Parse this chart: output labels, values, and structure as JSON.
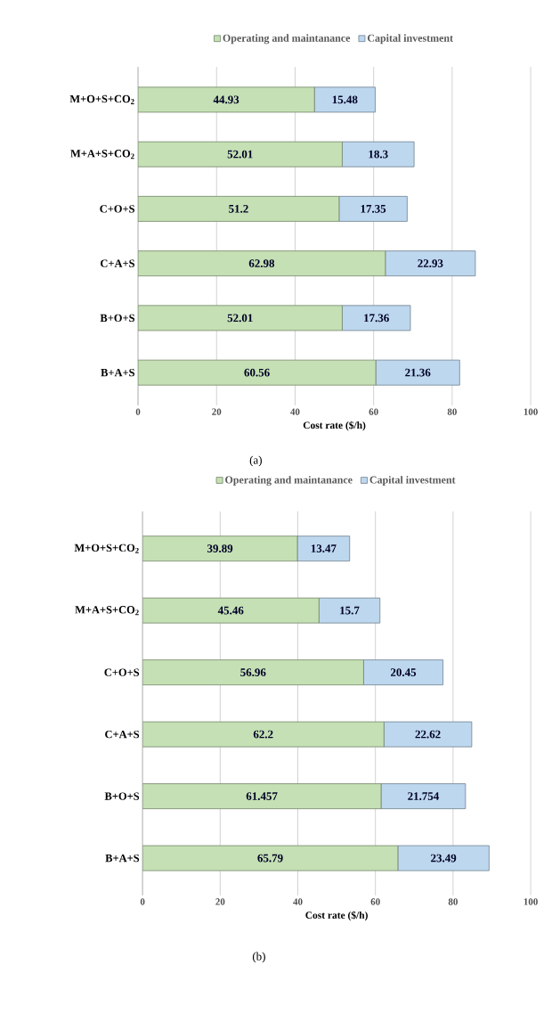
{
  "chart_data": [
    {
      "type": "bar",
      "orientation": "horizontal",
      "stacked": true,
      "categories": [
        "M+O+S+CO$_{2}$",
        "M+A+S+CO$_{2}$",
        "C+O+S",
        "C+A+S",
        "B+O+S",
        "B+A+S"
      ],
      "series": [
        {
          "name": "Operating and maintanance",
          "color": "#c5e0b4",
          "values": [
            44.93,
            52.01,
            51.2,
            62.98,
            52.01,
            60.56
          ]
        },
        {
          "name": "Capital investment",
          "color": "#bdd7ee",
          "values": [
            15.48,
            18.3,
            17.35,
            22.93,
            17.36,
            21.36
          ]
        }
      ],
      "xlim": [
        0,
        100
      ],
      "xticks": [
        0,
        20,
        40,
        60,
        80,
        100
      ],
      "xlabel": "Cost rate ($/h)",
      "grid": "x",
      "legend": "top",
      "data_labels": true,
      "annotations": [
        "(a)"
      ]
    },
    {
      "type": "bar",
      "orientation": "horizontal",
      "stacked": true,
      "categories": [
        "M+O+S+CO$_{2}$",
        "M+A+S+CO$_{2}$",
        "C+O+S",
        "C+A+S",
        "B+O+S",
        "B+A+S"
      ],
      "series": [
        {
          "name": "Operating and maintanance",
          "color": "#c5e0b4",
          "values": [
            39.89,
            45.46,
            56.96,
            62.2,
            61.457,
            65.79
          ]
        },
        {
          "name": "Capital investment",
          "color": "#bdd7ee",
          "values": [
            13.47,
            15.7,
            20.45,
            22.62,
            21.754,
            23.49
          ]
        }
      ],
      "xlim": [
        0,
        100
      ],
      "xticks": [
        0,
        20,
        40,
        60,
        80,
        100
      ],
      "xlabel": "Cost rate ($/h)",
      "grid": "x",
      "legend": "top",
      "data_labels": true,
      "annotations": [
        "(b)"
      ]
    }
  ]
}
